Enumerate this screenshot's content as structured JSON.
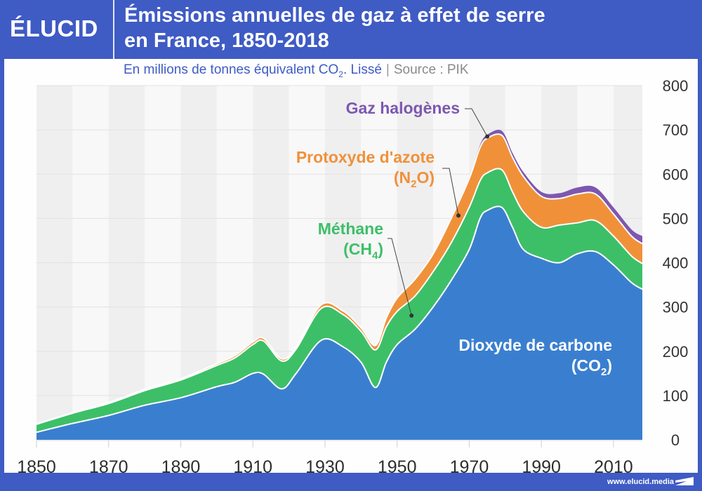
{
  "header": {
    "logo": "ÉLUCID",
    "title_line1": "Émissions annuelles de gaz à effet de serre",
    "title_line2": "en France, 1850-2018"
  },
  "subtitle": {
    "unit_prefix": "En millions de tonnes équivalent CO",
    "unit_sub": "2",
    "unit_suffix": ". Lissé",
    "separator": "|",
    "source": "Source : PIK"
  },
  "footer": {
    "url": "www.elucid.media"
  },
  "colors": {
    "header_bg": "#3f5bc4",
    "co2": "#3a7fcf",
    "ch4": "#3dbf68",
    "n2o": "#f0913a",
    "halogen": "#7e57b0",
    "grid_band_dark": "#efefef",
    "grid_band_light": "#f8f8f8"
  },
  "chart_data": {
    "type": "area",
    "stacked": true,
    "title": "Émissions annuelles de gaz à effet de serre en France, 1850-2018",
    "subtitle": "En millions de tonnes équivalent CO2. Lissé | Source : PIK",
    "xlabel": "",
    "ylabel": "",
    "xlim": [
      1850,
      2018
    ],
    "ylim": [
      0,
      800
    ],
    "x_ticks": [
      1850,
      1870,
      1890,
      1910,
      1930,
      1950,
      1970,
      1990,
      2010
    ],
    "y_ticks": [
      0,
      100,
      200,
      300,
      400,
      500,
      600,
      700,
      800
    ],
    "y_axis_side": "right",
    "grid": true,
    "x": [
      1850,
      1860,
      1870,
      1880,
      1890,
      1900,
      1905,
      1910,
      1913,
      1918,
      1922,
      1929,
      1935,
      1940,
      1944,
      1947,
      1950,
      1955,
      1960,
      1965,
      1970,
      1973,
      1975,
      1979,
      1982,
      1985,
      1990,
      1995,
      2000,
      2005,
      2010,
      2015,
      2018
    ],
    "series": [
      {
        "name": "Dioxyde de carbone (CO2)",
        "key": "co2",
        "values": [
          17,
          37,
          55,
          78,
          95,
          120,
          130,
          150,
          148,
          115,
          150,
          225,
          210,
          175,
          118,
          175,
          215,
          250,
          300,
          360,
          430,
          500,
          518,
          525,
          480,
          430,
          410,
          400,
          420,
          425,
          395,
          355,
          340
        ]
      },
      {
        "name": "Méthane (CH4)",
        "key": "ch4",
        "values": [
          18,
          23,
          27,
          33,
          40,
          48,
          55,
          65,
          75,
          63,
          55,
          72,
          73,
          70,
          85,
          80,
          75,
          75,
          80,
          85,
          95,
          85,
          85,
          85,
          80,
          85,
          70,
          85,
          70,
          70,
          65,
          60,
          58
        ]
      },
      {
        "name": "Protoxyde d'azote (N2O)",
        "key": "n2o",
        "values": [
          1,
          1,
          2,
          3,
          3,
          4,
          5,
          6,
          6,
          5,
          5,
          8,
          8,
          8,
          10,
          20,
          30,
          38,
          40,
          55,
          65,
          75,
          78,
          78,
          78,
          80,
          70,
          60,
          65,
          60,
          50,
          45,
          45
        ]
      },
      {
        "name": "Gaz halogènes",
        "key": "halogen",
        "values": [
          0,
          0,
          0,
          0,
          0,
          0,
          0,
          0,
          0,
          0,
          0,
          0,
          0,
          0,
          0,
          0,
          0,
          1,
          2,
          3,
          4,
          6,
          8,
          10,
          10,
          10,
          10,
          12,
          15,
          15,
          15,
          15,
          17
        ]
      }
    ],
    "annotations": [
      {
        "series": "halogen",
        "label": "Gaz halogènes",
        "year": 1975
      },
      {
        "series": "n2o",
        "label": "Protoxyde d'azote",
        "label2": "(N",
        "label2_sub": "2",
        "label2_end": "O)",
        "year": 1967
      },
      {
        "series": "ch4",
        "label": "Méthane",
        "label2": "(CH",
        "label2_sub": "4",
        "label2_end": ")",
        "year": 1954
      },
      {
        "series": "co2",
        "label": "Dioxyde de carbone",
        "label2": "(CO",
        "label2_sub": "2",
        "label2_end": ")"
      }
    ]
  }
}
